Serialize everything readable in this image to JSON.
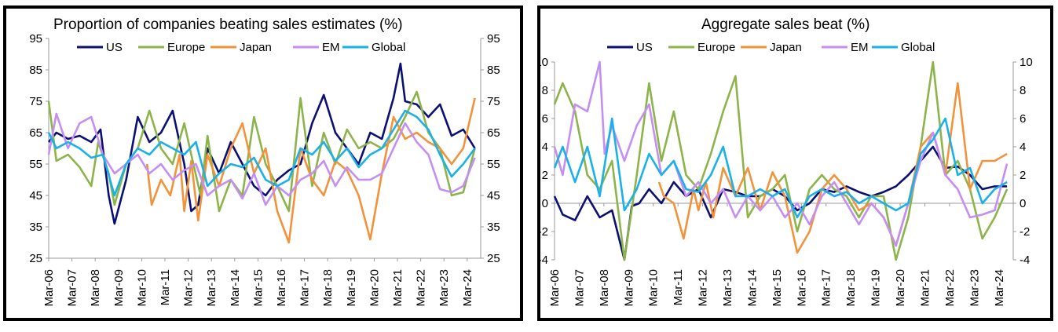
{
  "chart_data": [
    {
      "type": "line",
      "title": "Proportion of companies beating sales estimates (%)",
      "x_tick_labels": [
        "Mar-06",
        "Mar-07",
        "Mar-08",
        "Mar-09",
        "Mar-10",
        "Mar-11",
        "Mar-12",
        "Mar-13",
        "Mar-14",
        "Mar-15",
        "Mar-16",
        "Mar-17",
        "Mar-18",
        "Mar-19",
        "Mar-20",
        "Mar-21",
        "Mar-22",
        "Mar-23",
        "Mar-24"
      ],
      "y_ticks": [
        25,
        35,
        45,
        55,
        65,
        75,
        85,
        95
      ],
      "ylim": [
        25,
        95
      ],
      "x_range": [
        2006.17,
        2024.75
      ],
      "legend_position": "top",
      "grid": false,
      "series": [
        {
          "name": "US",
          "color": "#0a1172",
          "x": [
            2006.17,
            2006.5,
            2007,
            2007.5,
            2008,
            2008.4,
            2008.75,
            2009,
            2009.5,
            2010,
            2010.5,
            2011,
            2011.5,
            2012,
            2012.3,
            2012.6,
            2013,
            2013.5,
            2014,
            2014.5,
            2015,
            2015.5,
            2016,
            2016.5,
            2017,
            2017.5,
            2018,
            2018.5,
            2019,
            2019.5,
            2020,
            2020.5,
            2021,
            2021.3,
            2021.5,
            2022,
            2022.5,
            2023,
            2023.5,
            2024,
            2024.5
          ],
          "y": [
            62,
            65,
            63,
            64,
            62,
            66,
            45,
            36,
            50,
            70,
            62,
            65,
            72,
            55,
            40,
            42,
            60,
            52,
            62,
            55,
            48,
            45,
            50,
            53,
            55,
            68,
            77,
            65,
            60,
            55,
            65,
            63,
            76,
            87,
            75,
            74,
            70,
            74,
            64,
            66,
            60
          ]
        },
        {
          "name": "Europe",
          "color": "#8db44a",
          "x": [
            2006.17,
            2006.5,
            2007,
            2007.5,
            2008,
            2008.3,
            2008.75,
            2009,
            2009.5,
            2010,
            2010.5,
            2011,
            2011.5,
            2012,
            2012.3,
            2012.7,
            2013,
            2013.5,
            2014,
            2014.5,
            2015,
            2015.5,
            2016,
            2016.5,
            2017,
            2017.5,
            2018,
            2018.5,
            2019,
            2019.5,
            2020,
            2020.5,
            2021,
            2021.5,
            2022,
            2022.5,
            2023,
            2023.5,
            2024,
            2024.5
          ],
          "y": [
            75,
            56,
            58,
            54,
            48,
            62,
            52,
            42,
            55,
            60,
            72,
            60,
            55,
            68,
            58,
            45,
            64,
            40,
            50,
            45,
            70,
            55,
            48,
            40,
            76,
            48,
            65,
            55,
            66,
            60,
            62,
            60,
            63,
            70,
            78,
            65,
            60,
            45,
            46,
            60
          ]
        },
        {
          "name": "Japan",
          "color": "#f2923a",
          "x": [
            2010.4,
            2010.6,
            2011,
            2011.4,
            2011.8,
            2012,
            2012.3,
            2012.6,
            2013,
            2013.5,
            2014,
            2014.5,
            2015,
            2015.5,
            2016,
            2016.5,
            2017,
            2017.5,
            2018,
            2018.5,
            2019,
            2019.5,
            2020,
            2020.5,
            2021,
            2021.5,
            2022,
            2022.5,
            2023,
            2023.5,
            2024,
            2024.5
          ],
          "y": [
            55,
            42,
            50,
            45,
            58,
            40,
            56,
            37,
            58,
            48,
            60,
            68,
            52,
            60,
            40,
            30,
            60,
            50,
            45,
            56,
            53,
            45,
            31,
            52,
            70,
            63,
            65,
            62,
            60,
            55,
            60,
            76
          ]
        },
        {
          "name": "EM",
          "color": "#c48ef2",
          "x": [
            2006.17,
            2006.5,
            2007,
            2007.5,
            2008,
            2008.5,
            2009,
            2009.5,
            2010,
            2010.5,
            2011,
            2011.5,
            2012,
            2012.5,
            2013,
            2013.5,
            2014,
            2014.5,
            2015,
            2015.5,
            2016,
            2016.5,
            2017,
            2017.5,
            2018,
            2018.5,
            2019,
            2019.5,
            2020,
            2020.5,
            2021,
            2021.5,
            2022,
            2022.5,
            2023,
            2023.5,
            2024,
            2024.5
          ],
          "y": [
            58,
            71,
            60,
            68,
            70,
            58,
            52,
            55,
            58,
            52,
            55,
            50,
            53,
            55,
            45,
            48,
            50,
            44,
            52,
            42,
            48,
            45,
            50,
            52,
            56,
            48,
            54,
            50,
            50,
            52,
            60,
            68,
            62,
            58,
            47,
            46,
            48,
            57
          ]
        },
        {
          "name": "Global",
          "color": "#1ab0e8",
          "x": [
            2006.17,
            2006.5,
            2007,
            2007.5,
            2008,
            2008.5,
            2009,
            2009.5,
            2010,
            2010.5,
            2011,
            2011.5,
            2012,
            2012.5,
            2013,
            2013.5,
            2014,
            2014.5,
            2015,
            2015.5,
            2016,
            2016.5,
            2017,
            2017.5,
            2018,
            2018.5,
            2019,
            2019.5,
            2020,
            2020.5,
            2021,
            2021.5,
            2022,
            2022.5,
            2023,
            2023.5,
            2024,
            2024.5
          ],
          "y": [
            65,
            60,
            62,
            60,
            57,
            58,
            45,
            55,
            60,
            58,
            62,
            60,
            58,
            62,
            48,
            52,
            55,
            54,
            57,
            50,
            48,
            50,
            60,
            58,
            62,
            56,
            60,
            54,
            58,
            60,
            66,
            72,
            70,
            66,
            58,
            51,
            55,
            60
          ]
        }
      ]
    },
    {
      "type": "line",
      "title": "Aggregate sales beat (%)",
      "x_tick_labels": [
        "Mar-06",
        "Mar-07",
        "Mar-08",
        "Mar-09",
        "Mar-10",
        "Mar-11",
        "Mar-12",
        "Mar-13",
        "Mar-14",
        "Mar-15",
        "Mar-16",
        "Mar-17",
        "Mar-18",
        "Mar-19",
        "Mar-20",
        "Mar-21",
        "Mar-22",
        "Mar-23",
        "Mar-24"
      ],
      "y_ticks": [
        -4,
        -2,
        0,
        2,
        4,
        6,
        8,
        10
      ],
      "ylim": [
        -4,
        10
      ],
      "x_range": [
        2006.17,
        2024.75
      ],
      "legend_position": "top",
      "grid": false,
      "series": [
        {
          "name": "US",
          "color": "#0a1172",
          "x": [
            2006.17,
            2006.5,
            2007,
            2007.5,
            2008,
            2008.5,
            2009,
            2009.3,
            2009.6,
            2010,
            2010.5,
            2011,
            2011.5,
            2012,
            2012.5,
            2013,
            2013.5,
            2014,
            2014.5,
            2015,
            2015.5,
            2016,
            2016.5,
            2017,
            2017.5,
            2018,
            2018.5,
            2019,
            2019.5,
            2020,
            2020.5,
            2021,
            2021.5,
            2022,
            2022.5,
            2023,
            2023.5,
            2024,
            2024.5
          ],
          "y": [
            0.5,
            -0.8,
            -1.2,
            0.5,
            -1,
            -0.5,
            -4,
            -0.2,
            0,
            1,
            0,
            1.5,
            0.5,
            1,
            -1,
            1,
            0.8,
            0.5,
            0.5,
            1,
            0.5,
            -0.5,
            0,
            1,
            0.8,
            1.2,
            0.8,
            0.5,
            0.8,
            1.2,
            2,
            3,
            4,
            2.5,
            2.6,
            2,
            1,
            1.2,
            1.2
          ]
        },
        {
          "name": "Europe",
          "color": "#8db44a",
          "x": [
            2006.17,
            2006.5,
            2007,
            2007.5,
            2008,
            2008.5,
            2009,
            2009.5,
            2010,
            2010.5,
            2011,
            2011.5,
            2012,
            2012.5,
            2013,
            2013.5,
            2014,
            2014.5,
            2015,
            2015.5,
            2016,
            2016.5,
            2017,
            2017.5,
            2018,
            2018.5,
            2019,
            2019.5,
            2020,
            2020.5,
            2021,
            2021.5,
            2022,
            2022.5,
            2023,
            2023.5,
            2024,
            2024.5
          ],
          "y": [
            7,
            8.5,
            6.5,
            2,
            1,
            3,
            -4,
            2,
            8.5,
            3,
            6.5,
            2,
            1,
            3.5,
            6.5,
            9,
            -1,
            0.5,
            1,
            2,
            -2,
            1,
            2,
            1,
            0.5,
            -1,
            0.5,
            0.5,
            -4,
            -1,
            4,
            10,
            2,
            3,
            1,
            -2.5,
            -1,
            1
          ]
        },
        {
          "name": "Japan",
          "color": "#f2923a",
          "x": [
            2010.4,
            2010.6,
            2011,
            2011.4,
            2011.8,
            2012,
            2012.3,
            2012.6,
            2013,
            2013.5,
            2014,
            2014.5,
            2015,
            2015.5,
            2016,
            2016.5,
            2017,
            2017.5,
            2018,
            2018.5,
            2019,
            2019.5,
            2020,
            2020.5,
            2021,
            2021.5,
            2022,
            2022.5,
            2023,
            2023.5,
            2024,
            2024.5
          ],
          "y": [
            1.5,
            0.5,
            0,
            -2.5,
            1,
            -0.5,
            1.5,
            -1,
            2.5,
            0.5,
            2.5,
            -0.5,
            2.2,
            0.5,
            -3.5,
            -2,
            1,
            2,
            1,
            -0.5,
            0,
            -1,
            -3,
            0,
            4,
            5,
            2,
            8.5,
            1,
            3,
            3,
            3.5
          ]
        },
        {
          "name": "EM",
          "color": "#c48ef2",
          "x": [
            2006.17,
            2006.5,
            2007,
            2007.5,
            2008,
            2008.2,
            2008.5,
            2009,
            2009.5,
            2010,
            2010.5,
            2011,
            2011.5,
            2012,
            2012.5,
            2013,
            2013.5,
            2014,
            2014.5,
            2015,
            2015.5,
            2016,
            2016.5,
            2017,
            2017.5,
            2018,
            2018.5,
            2019,
            2019.5,
            2020,
            2020.5,
            2021,
            2021.5,
            2022,
            2022.5,
            2023,
            2023.5,
            2024,
            2024.5
          ],
          "y": [
            4,
            2,
            7,
            6.5,
            10,
            3.5,
            5.5,
            3,
            5.5,
            7,
            2,
            3,
            0.5,
            1.5,
            0,
            1,
            -1,
            0.5,
            -0.5,
            0.5,
            -1,
            0,
            -1.5,
            0.5,
            1.5,
            0,
            -1.5,
            0,
            -1,
            -3,
            0,
            3,
            5,
            2,
            1,
            -1,
            -0.8,
            -0.5,
            2.8
          ]
        },
        {
          "name": "Global",
          "color": "#1ab0e8",
          "x": [
            2006.17,
            2006.5,
            2007,
            2007.5,
            2008,
            2008.5,
            2009,
            2009.5,
            2010,
            2010.5,
            2011,
            2011.5,
            2012,
            2012.5,
            2013,
            2013.5,
            2014,
            2014.5,
            2015,
            2015.5,
            2016,
            2016.5,
            2017,
            2017.5,
            2018,
            2018.5,
            2019,
            2019.5,
            2020,
            2020.5,
            2021,
            2021.5,
            2022,
            2022.5,
            2023,
            2023.5,
            2024,
            2024.5
          ],
          "y": [
            2.5,
            4,
            1.5,
            4,
            0.5,
            6,
            -0.5,
            1,
            3.5,
            2,
            3,
            1,
            0.8,
            2,
            4,
            0.5,
            0.5,
            1,
            0.5,
            1,
            -1,
            0.5,
            1,
            0.5,
            0.8,
            0,
            0.5,
            0,
            -0.5,
            0,
            3.5,
            4.5,
            6,
            2,
            2.5,
            0,
            1,
            1.5
          ]
        }
      ]
    }
  ]
}
